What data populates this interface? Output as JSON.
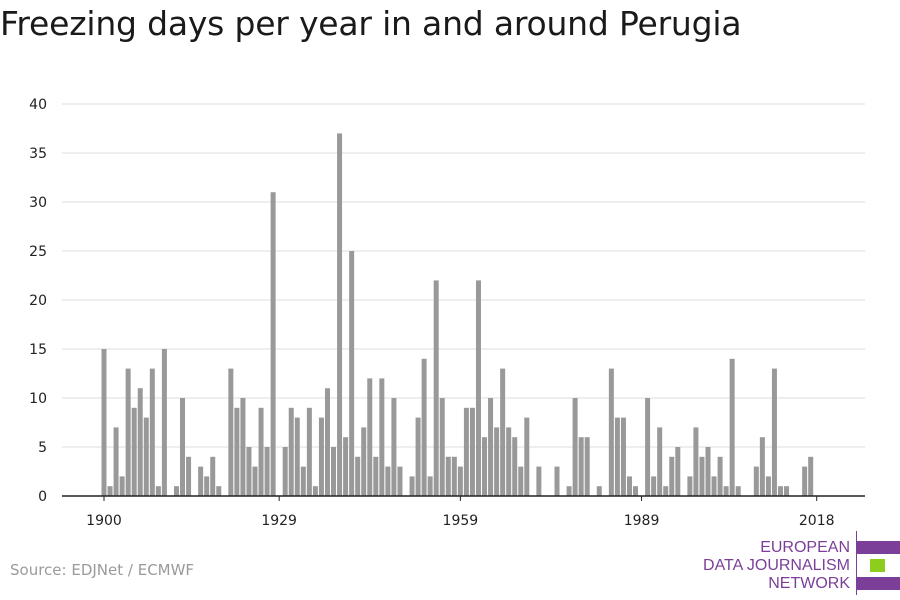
{
  "page": {
    "title": "Freezing days per year in and around Perugia",
    "source": "Source: EDJNet / ECMWF"
  },
  "logo": {
    "line1": "EUROPEAN",
    "line2": "DATA JOURNALISM",
    "line3": "NETWORK",
    "colors": {
      "text": "#7b3f99",
      "bar1": "#7b3f99",
      "bar2": "#8ccd1e",
      "bar3": "#7b3f99"
    }
  },
  "chart_data": {
    "type": "bar",
    "title": "Freezing days per year in and around Perugia",
    "xlabel": "",
    "ylabel": "",
    "x_start": 1900,
    "x_end": 2018,
    "xticks": [
      1900,
      1929,
      1959,
      1989,
      2018
    ],
    "yticks": [
      0,
      5,
      10,
      15,
      20,
      25,
      30,
      35,
      40
    ],
    "ylim": [
      0,
      40
    ],
    "grid": true,
    "bar_color": "#999999",
    "categories": [
      1900,
      1901,
      1902,
      1903,
      1904,
      1905,
      1906,
      1907,
      1908,
      1909,
      1910,
      1911,
      1912,
      1913,
      1914,
      1915,
      1916,
      1917,
      1918,
      1919,
      1920,
      1921,
      1922,
      1923,
      1924,
      1925,
      1926,
      1927,
      1928,
      1929,
      1930,
      1931,
      1932,
      1933,
      1934,
      1935,
      1936,
      1937,
      1938,
      1939,
      1940,
      1941,
      1942,
      1943,
      1944,
      1945,
      1946,
      1947,
      1948,
      1949,
      1950,
      1951,
      1952,
      1953,
      1954,
      1955,
      1956,
      1957,
      1958,
      1959,
      1960,
      1961,
      1962,
      1963,
      1964,
      1965,
      1966,
      1967,
      1968,
      1969,
      1970,
      1971,
      1972,
      1973,
      1974,
      1975,
      1976,
      1977,
      1978,
      1979,
      1980,
      1981,
      1982,
      1983,
      1984,
      1985,
      1986,
      1987,
      1988,
      1989,
      1990,
      1991,
      1992,
      1993,
      1994,
      1995,
      1996,
      1997,
      1998,
      1999,
      2000,
      2001,
      2002,
      2003,
      2004,
      2005,
      2006,
      2007,
      2008,
      2009,
      2010,
      2011,
      2012,
      2013,
      2014,
      2015,
      2016,
      2017,
      2018
    ],
    "values": [
      15,
      1,
      7,
      2,
      13,
      9,
      11,
      8,
      13,
      1,
      15,
      0,
      1,
      10,
      4,
      0,
      3,
      2,
      4,
      1,
      0,
      13,
      9,
      10,
      5,
      3,
      9,
      5,
      31,
      0,
      5,
      9,
      8,
      3,
      9,
      1,
      8,
      11,
      5,
      37,
      6,
      25,
      4,
      7,
      12,
      4,
      12,
      3,
      10,
      3,
      0,
      2,
      8,
      14,
      2,
      22,
      10,
      4,
      4,
      3,
      9,
      9,
      22,
      6,
      10,
      7,
      13,
      7,
      6,
      3,
      8,
      0,
      3,
      0,
      0,
      3,
      0,
      1,
      10,
      6,
      6,
      0,
      1,
      0,
      13,
      8,
      8,
      2,
      1,
      0,
      10,
      2,
      7,
      1,
      4,
      5,
      0,
      2,
      7,
      4,
      5,
      2,
      4,
      1,
      14,
      1,
      0,
      0,
      3,
      6,
      2,
      13,
      1,
      1,
      0,
      0,
      3,
      4,
      0
    ]
  }
}
